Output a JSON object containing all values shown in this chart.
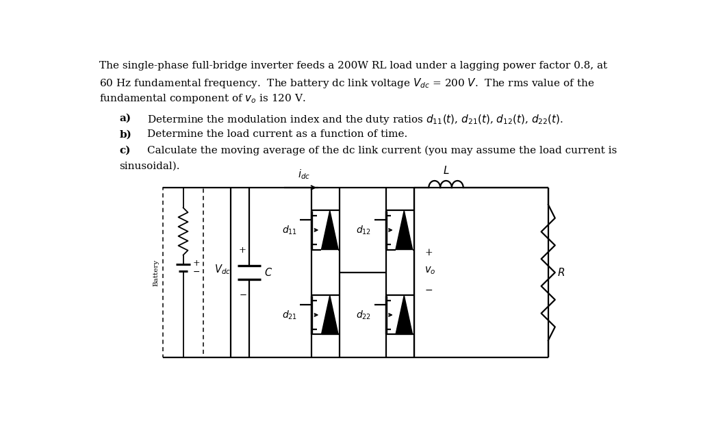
{
  "bg_color": "#ffffff",
  "text_color": "#000000",
  "fig_width": 10.24,
  "fig_height": 6.28,
  "dpi": 100,
  "line1": "The single-phase full-bridge inverter feeds a 200W RL load under a lagging power factor 0.8, at",
  "line2": "60 Hz fundamental frequency.  The battery dc link voltage $V_{dc}$ = 200 $V$.  The rms value of the",
  "line3": "fundamental component of $v_o$ is 120 V.",
  "item_a_bold": "a)",
  "item_a_text": "Determine the modulation index and the duty ratios $d_{11}(t)$, $d_{21}(t)$, $d_{12}(t)$, $d_{22}(t)$.",
  "item_b_bold": "b)",
  "item_b_text": "Determine the load current as a function of time.",
  "item_c_bold": "c)",
  "item_c_text1": "Calculate the moving average of the dc link current (you may assume the load current is",
  "item_c_text2": "sinusoidal).",
  "idc_label": "$i_{dc}$",
  "vdc_label": "$V_{dc}$",
  "C_label": "$C$",
  "L_label": "$L$",
  "R_label": "$R$",
  "vo_label": "$v_o$",
  "battery_label": "Battery",
  "d11_label": "$d_{11}$",
  "d21_label": "$d_{21}$",
  "d12_label": "$d_{12}$",
  "d22_label": "$d_{22}$"
}
